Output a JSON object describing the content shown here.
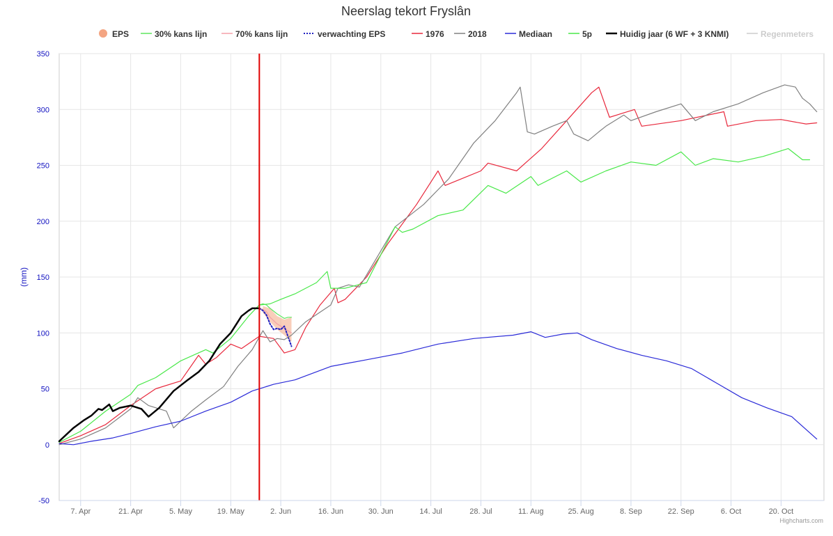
{
  "chart_data": {
    "type": "line",
    "title": "Neerslag tekort Fryslân",
    "ylabel": "(mm)",
    "ylim": [
      -50,
      350
    ],
    "yticks": [
      -50,
      0,
      50,
      100,
      150,
      200,
      250,
      300,
      350
    ],
    "x_range": [
      "2024-04-01",
      "2024-11-01"
    ],
    "xticks": [
      {
        "date": "2024-04-07",
        "label": "7. Apr"
      },
      {
        "date": "2024-04-21",
        "label": "21. Apr"
      },
      {
        "date": "2024-05-05",
        "label": "5. May"
      },
      {
        "date": "2024-05-19",
        "label": "19. May"
      },
      {
        "date": "2024-06-02",
        "label": "2. Jun"
      },
      {
        "date": "2024-06-16",
        "label": "16. Jun"
      },
      {
        "date": "2024-06-30",
        "label": "30. Jun"
      },
      {
        "date": "2024-07-14",
        "label": "14. Jul"
      },
      {
        "date": "2024-07-28",
        "label": "28. Jul"
      },
      {
        "date": "2024-08-11",
        "label": "11. Aug"
      },
      {
        "date": "2024-08-25",
        "label": "25. Aug"
      },
      {
        "date": "2024-09-08",
        "label": "8. Sep"
      },
      {
        "date": "2024-09-22",
        "label": "22. Sep"
      },
      {
        "date": "2024-10-06",
        "label": "6. Oct"
      },
      {
        "date": "2024-10-20",
        "label": "20. Oct"
      }
    ],
    "grid": true,
    "legend_position": "top",
    "today_marker": {
      "date": "2024-05-27",
      "color": "#e00000"
    },
    "series": [
      {
        "name": "EPS",
        "type": "arearange",
        "color": "#f4a582",
        "symbol": "circle",
        "data": [
          [
            "2024-05-28",
            [
              118,
              124
            ]
          ],
          [
            "2024-05-30",
            [
              110,
              122
            ]
          ],
          [
            "2024-06-01",
            [
              103,
              115
            ]
          ],
          [
            "2024-06-03",
            [
              98,
              112
            ]
          ],
          [
            "2024-06-05",
            [
              92,
              114
            ]
          ]
        ]
      },
      {
        "name": "30% kans lijn",
        "color": "#5ee65e",
        "data": [
          [
            "2024-05-27",
            125
          ],
          [
            "2024-05-28",
            126
          ],
          [
            "2024-05-29",
            125
          ],
          [
            "2024-05-30",
            122
          ],
          [
            "2024-06-01",
            117
          ],
          [
            "2024-06-03",
            113
          ],
          [
            "2024-06-04",
            114
          ],
          [
            "2024-06-05",
            114
          ]
        ]
      },
      {
        "name": "70% kans lijn",
        "color": "#f4a0a8",
        "data": [
          [
            "2024-05-27",
            122
          ],
          [
            "2024-05-28",
            121
          ],
          [
            "2024-05-29",
            119
          ],
          [
            "2024-05-30",
            114
          ],
          [
            "2024-06-01",
            108
          ],
          [
            "2024-06-03",
            104
          ],
          [
            "2024-06-05",
            100
          ]
        ]
      },
      {
        "name": "verwachting EPS",
        "color": "#2020c0",
        "dash": true,
        "data": [
          [
            "2024-05-27",
            122
          ],
          [
            "2024-05-28",
            120
          ],
          [
            "2024-05-29",
            116
          ],
          [
            "2024-05-30",
            108
          ],
          [
            "2024-05-31",
            103
          ],
          [
            "2024-06-01",
            104
          ],
          [
            "2024-06-02",
            103
          ],
          [
            "2024-06-03",
            106
          ],
          [
            "2024-06-04",
            97
          ],
          [
            "2024-06-05",
            88
          ]
        ]
      },
      {
        "name": "1976",
        "color": "#e8283c",
        "data": [
          [
            "2024-04-01",
            1
          ],
          [
            "2024-04-07",
            8
          ],
          [
            "2024-04-14",
            18
          ],
          [
            "2024-04-21",
            35
          ],
          [
            "2024-04-28",
            50
          ],
          [
            "2024-05-05",
            57
          ],
          [
            "2024-05-10",
            80
          ],
          [
            "2024-05-12",
            72
          ],
          [
            "2024-05-15",
            78
          ],
          [
            "2024-05-19",
            90
          ],
          [
            "2024-05-22",
            86
          ],
          [
            "2024-05-27",
            97
          ],
          [
            "2024-05-31",
            95
          ],
          [
            "2024-06-03",
            82
          ],
          [
            "2024-06-06",
            85
          ],
          [
            "2024-06-09",
            105
          ],
          [
            "2024-06-13",
            125
          ],
          [
            "2024-06-17",
            140
          ],
          [
            "2024-06-18",
            127
          ],
          [
            "2024-06-20",
            130
          ],
          [
            "2024-06-26",
            150
          ],
          [
            "2024-07-02",
            180
          ],
          [
            "2024-07-10",
            215
          ],
          [
            "2024-07-16",
            245
          ],
          [
            "2024-07-18",
            232
          ],
          [
            "2024-07-28",
            245
          ],
          [
            "2024-07-30",
            252
          ],
          [
            "2024-08-07",
            245
          ],
          [
            "2024-08-14",
            265
          ],
          [
            "2024-08-21",
            290
          ],
          [
            "2024-08-28",
            315
          ],
          [
            "2024-08-30",
            320
          ],
          [
            "2024-09-02",
            293
          ],
          [
            "2024-09-09",
            300
          ],
          [
            "2024-09-11",
            285
          ],
          [
            "2024-09-22",
            290
          ],
          [
            "2024-10-04",
            298
          ],
          [
            "2024-10-05",
            285
          ],
          [
            "2024-10-13",
            290
          ],
          [
            "2024-10-20",
            291
          ],
          [
            "2024-10-27",
            287
          ],
          [
            "2024-10-30",
            288
          ]
        ]
      },
      {
        "name": "2018",
        "color": "#808080",
        "data": [
          [
            "2024-04-01",
            0
          ],
          [
            "2024-04-07",
            5
          ],
          [
            "2024-04-14",
            15
          ],
          [
            "2024-04-21",
            32
          ],
          [
            "2024-04-23",
            42
          ],
          [
            "2024-04-26",
            35
          ],
          [
            "2024-05-01",
            30
          ],
          [
            "2024-05-03",
            15
          ],
          [
            "2024-05-08",
            30
          ],
          [
            "2024-05-12",
            40
          ],
          [
            "2024-05-17",
            52
          ],
          [
            "2024-05-21",
            70
          ],
          [
            "2024-05-25",
            85
          ],
          [
            "2024-05-28",
            102
          ],
          [
            "2024-05-30",
            92
          ],
          [
            "2024-06-01",
            95
          ],
          [
            "2024-06-03",
            94
          ],
          [
            "2024-06-05",
            98
          ],
          [
            "2024-06-09",
            110
          ],
          [
            "2024-06-16",
            125
          ],
          [
            "2024-06-18",
            140
          ],
          [
            "2024-06-21",
            143
          ],
          [
            "2024-06-24",
            141
          ],
          [
            "2024-07-04",
            195
          ],
          [
            "2024-07-12",
            215
          ],
          [
            "2024-07-19",
            238
          ],
          [
            "2024-07-26",
            270
          ],
          [
            "2024-08-01",
            290
          ],
          [
            "2024-08-07",
            315
          ],
          [
            "2024-08-08",
            320
          ],
          [
            "2024-08-10",
            280
          ],
          [
            "2024-08-12",
            278
          ],
          [
            "2024-08-17",
            285
          ],
          [
            "2024-08-21",
            290
          ],
          [
            "2024-08-23",
            278
          ],
          [
            "2024-08-27",
            272
          ],
          [
            "2024-08-30",
            280
          ],
          [
            "2024-09-01",
            285
          ],
          [
            "2024-09-06",
            295
          ],
          [
            "2024-09-08",
            290
          ],
          [
            "2024-09-15",
            298
          ],
          [
            "2024-09-22",
            305
          ],
          [
            "2024-09-26",
            290
          ],
          [
            "2024-10-01",
            298
          ],
          [
            "2024-10-08",
            305
          ],
          [
            "2024-10-15",
            315
          ],
          [
            "2024-10-21",
            322
          ],
          [
            "2024-10-24",
            320
          ],
          [
            "2024-10-26",
            310
          ],
          [
            "2024-10-28",
            305
          ],
          [
            "2024-10-30",
            298
          ]
        ]
      },
      {
        "name": "Mediaan",
        "color": "#2a2ad8",
        "data": [
          [
            "2024-04-01",
            1
          ],
          [
            "2024-04-05",
            0
          ],
          [
            "2024-04-10",
            3
          ],
          [
            "2024-04-16",
            6
          ],
          [
            "2024-04-21",
            10
          ],
          [
            "2024-04-28",
            16
          ],
          [
            "2024-05-05",
            21
          ],
          [
            "2024-05-12",
            30
          ],
          [
            "2024-05-19",
            38
          ],
          [
            "2024-05-25",
            48
          ],
          [
            "2024-05-31",
            54
          ],
          [
            "2024-06-06",
            58
          ],
          [
            "2024-06-16",
            70
          ],
          [
            "2024-06-26",
            76
          ],
          [
            "2024-07-06",
            82
          ],
          [
            "2024-07-16",
            90
          ],
          [
            "2024-07-26",
            95
          ],
          [
            "2024-08-06",
            98
          ],
          [
            "2024-08-11",
            101
          ],
          [
            "2024-08-15",
            96
          ],
          [
            "2024-08-20",
            99
          ],
          [
            "2024-08-24",
            100
          ],
          [
            "2024-08-28",
            94
          ],
          [
            "2024-09-04",
            86
          ],
          [
            "2024-09-11",
            80
          ],
          [
            "2024-09-18",
            75
          ],
          [
            "2024-09-25",
            68
          ],
          [
            "2024-10-02",
            55
          ],
          [
            "2024-10-09",
            42
          ],
          [
            "2024-10-16",
            33
          ],
          [
            "2024-10-23",
            25
          ],
          [
            "2024-10-30",
            5
          ]
        ]
      },
      {
        "name": "5p",
        "color": "#49e849",
        "data": [
          [
            "2024-04-01",
            2
          ],
          [
            "2024-04-07",
            12
          ],
          [
            "2024-04-14",
            30
          ],
          [
            "2024-04-21",
            45
          ],
          [
            "2024-04-23",
            53
          ],
          [
            "2024-04-28",
            60
          ],
          [
            "2024-05-05",
            75
          ],
          [
            "2024-05-12",
            85
          ],
          [
            "2024-05-14",
            82
          ],
          [
            "2024-05-19",
            95
          ],
          [
            "2024-05-24",
            115
          ],
          [
            "2024-05-27",
            125
          ],
          [
            "2024-05-30",
            126
          ],
          [
            "2024-06-02",
            130
          ],
          [
            "2024-06-06",
            135
          ],
          [
            "2024-06-12",
            145
          ],
          [
            "2024-06-15",
            155
          ],
          [
            "2024-06-16",
            140
          ],
          [
            "2024-06-20",
            140
          ],
          [
            "2024-06-26",
            145
          ],
          [
            "2024-07-04",
            195
          ],
          [
            "2024-07-06",
            190
          ],
          [
            "2024-07-09",
            193
          ],
          [
            "2024-07-16",
            205
          ],
          [
            "2024-07-23",
            210
          ],
          [
            "2024-07-30",
            232
          ],
          [
            "2024-08-04",
            225
          ],
          [
            "2024-08-11",
            240
          ],
          [
            "2024-08-13",
            232
          ],
          [
            "2024-08-21",
            245
          ],
          [
            "2024-08-25",
            235
          ],
          [
            "2024-09-01",
            245
          ],
          [
            "2024-09-08",
            253
          ],
          [
            "2024-09-15",
            250
          ],
          [
            "2024-09-22",
            262
          ],
          [
            "2024-09-26",
            250
          ],
          [
            "2024-10-01",
            256
          ],
          [
            "2024-10-08",
            253
          ],
          [
            "2024-10-15",
            258
          ],
          [
            "2024-10-22",
            265
          ],
          [
            "2024-10-26",
            255
          ],
          [
            "2024-10-28",
            255
          ]
        ]
      },
      {
        "name": "Huidig jaar (6 WF + 3 KNMI)",
        "color": "#000000",
        "bold": true,
        "data": [
          [
            "2024-04-01",
            3
          ],
          [
            "2024-04-05",
            15
          ],
          [
            "2024-04-08",
            22
          ],
          [
            "2024-04-10",
            26
          ],
          [
            "2024-04-12",
            32
          ],
          [
            "2024-04-13",
            31
          ],
          [
            "2024-04-15",
            36
          ],
          [
            "2024-04-16",
            30
          ],
          [
            "2024-04-18",
            33
          ],
          [
            "2024-04-21",
            35
          ],
          [
            "2024-04-24",
            32
          ],
          [
            "2024-04-26",
            25
          ],
          [
            "2024-04-29",
            33
          ],
          [
            "2024-05-03",
            48
          ],
          [
            "2024-05-07",
            58
          ],
          [
            "2024-05-10",
            65
          ],
          [
            "2024-05-13",
            75
          ],
          [
            "2024-05-16",
            90
          ],
          [
            "2024-05-19",
            100
          ],
          [
            "2024-05-22",
            115
          ],
          [
            "2024-05-24",
            120
          ],
          [
            "2024-05-25",
            122
          ],
          [
            "2024-05-27",
            122
          ]
        ]
      },
      {
        "name": "Regenmeters",
        "color": "#cccccc",
        "visible": false,
        "data": []
      }
    ]
  },
  "credits": "Highcharts.com"
}
